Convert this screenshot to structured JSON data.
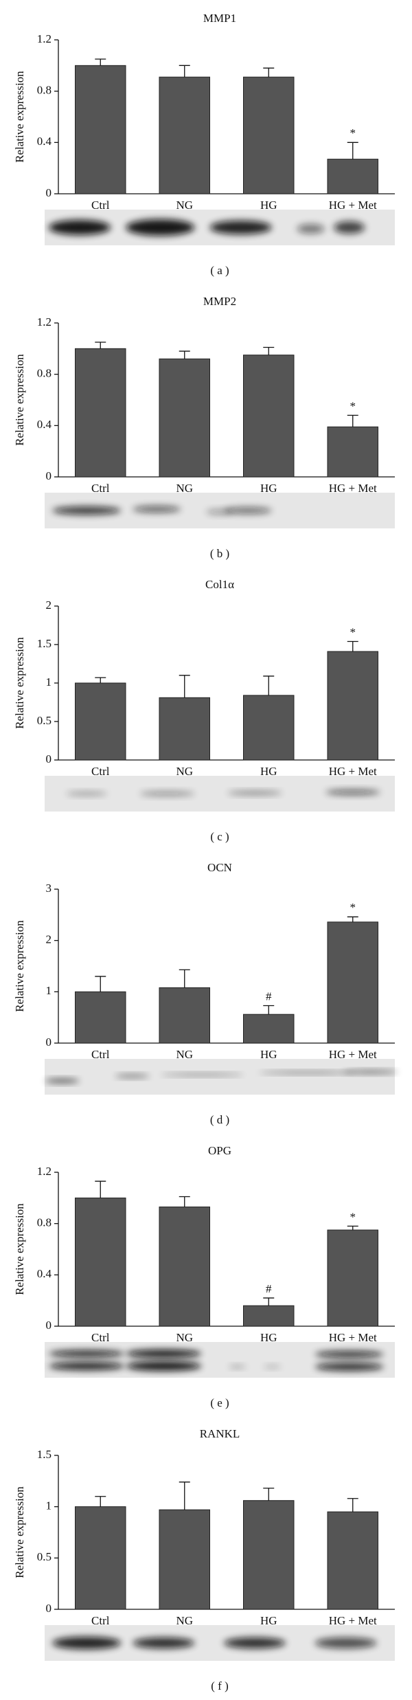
{
  "chart_data": [
    {
      "type": "bar",
      "title": "MMP1",
      "y_label": "Relative expression",
      "panel_label": "( a )",
      "color": "#555555",
      "categories": [
        "Ctrl",
        "NG",
        "HG",
        "HG + Met"
      ],
      "values": [
        1.0,
        0.91,
        0.91,
        0.27
      ],
      "errors": [
        0.05,
        0.09,
        0.07,
        0.13
      ],
      "annotations": [
        null,
        null,
        null,
        "*"
      ],
      "ylim": [
        0,
        1.2
      ],
      "yticks": [
        0,
        0.4,
        0.8,
        1.2
      ]
    },
    {
      "type": "bar",
      "title": "MMP2",
      "y_label": "Relative expression",
      "panel_label": "( b )",
      "color": "#555555",
      "categories": [
        "Ctrl",
        "NG",
        "HG",
        "HG + Met"
      ],
      "values": [
        1.0,
        0.92,
        0.95,
        0.39
      ],
      "errors": [
        0.05,
        0.06,
        0.06,
        0.09
      ],
      "annotations": [
        null,
        null,
        null,
        "*"
      ],
      "ylim": [
        0,
        1.2
      ],
      "yticks": [
        0,
        0.4,
        0.8,
        1.2
      ]
    },
    {
      "type": "bar",
      "title": "Col1α",
      "y_label": "Relative expression",
      "panel_label": "( c )",
      "color": "#555555",
      "categories": [
        "Ctrl",
        "NG",
        "HG",
        "HG + Met"
      ],
      "values": [
        1.0,
        0.81,
        0.84,
        1.41
      ],
      "errors": [
        0.07,
        0.29,
        0.25,
        0.13
      ],
      "annotations": [
        null,
        null,
        null,
        "*"
      ],
      "ylim": [
        0,
        2
      ],
      "yticks": [
        0,
        0.5,
        1,
        1.5,
        2
      ]
    },
    {
      "type": "bar",
      "title": "OCN",
      "y_label": "Relative expression",
      "panel_label": "( d )",
      "color": "#555555",
      "categories": [
        "Ctrl",
        "NG",
        "HG",
        "HG + Met"
      ],
      "values": [
        1.0,
        1.08,
        0.56,
        2.36
      ],
      "errors": [
        0.3,
        0.35,
        0.17,
        0.1
      ],
      "annotations": [
        null,
        null,
        "#",
        "*"
      ],
      "ylim": [
        0,
        3
      ],
      "yticks": [
        0,
        1,
        2,
        3
      ]
    },
    {
      "type": "bar",
      "title": "OPG",
      "y_label": "Relative expression",
      "panel_label": "( e )",
      "color": "#555555",
      "categories": [
        "Ctrl",
        "NG",
        "HG",
        "HG + Met"
      ],
      "values": [
        1.0,
        0.93,
        0.16,
        0.75
      ],
      "errors": [
        0.13,
        0.08,
        0.06,
        0.03
      ],
      "annotations": [
        null,
        null,
        "#",
        "*"
      ],
      "ylim": [
        0,
        1.2
      ],
      "yticks": [
        0,
        0.4,
        0.8,
        1.2
      ]
    },
    {
      "type": "bar",
      "title": "RANKL",
      "y_label": "Relative expression",
      "panel_label": "( f )",
      "color": "#555555",
      "categories": [
        "Ctrl",
        "NG",
        "HG",
        "HG + Met"
      ],
      "values": [
        1.0,
        0.97,
        1.06,
        0.95
      ],
      "errors": [
        0.1,
        0.27,
        0.12,
        0.13
      ],
      "annotations": [
        null,
        null,
        null,
        null
      ],
      "ylim": [
        0,
        1.5
      ],
      "yticks": [
        0,
        0.5,
        1,
        1.5
      ]
    }
  ]
}
